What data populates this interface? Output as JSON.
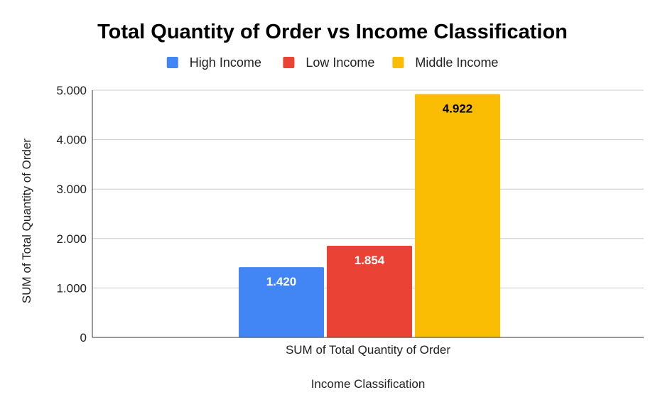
{
  "chart_data": {
    "type": "bar",
    "title": "Total Quantity of Order vs Income Classification",
    "xlabel": "Income Classification",
    "ylabel": "SUM of Total Quantity of Order",
    "categories": [
      "SUM of Total Quantity of Order"
    ],
    "series": [
      {
        "name": "High Income",
        "color": "#4285F4",
        "values": [
          1420
        ],
        "value_labels": [
          "1.420"
        ],
        "label_color": "#ffffff"
      },
      {
        "name": "Low Income",
        "color": "#EA4335",
        "values": [
          1854
        ],
        "value_labels": [
          "1.854"
        ],
        "label_color": "#ffffff"
      },
      {
        "name": "Middle Income",
        "color": "#FBBC04",
        "values": [
          4922
        ],
        "value_labels": [
          "4.922"
        ],
        "label_color": "#000000"
      }
    ],
    "ylim": [
      0,
      5000
    ],
    "yticks": [
      0,
      1000,
      2000,
      3000,
      4000,
      5000
    ],
    "ytick_labels": [
      "0",
      "1.000",
      "2.000",
      "3.000",
      "4.000",
      "5.000"
    ],
    "grid": true,
    "legend_position": "top"
  }
}
